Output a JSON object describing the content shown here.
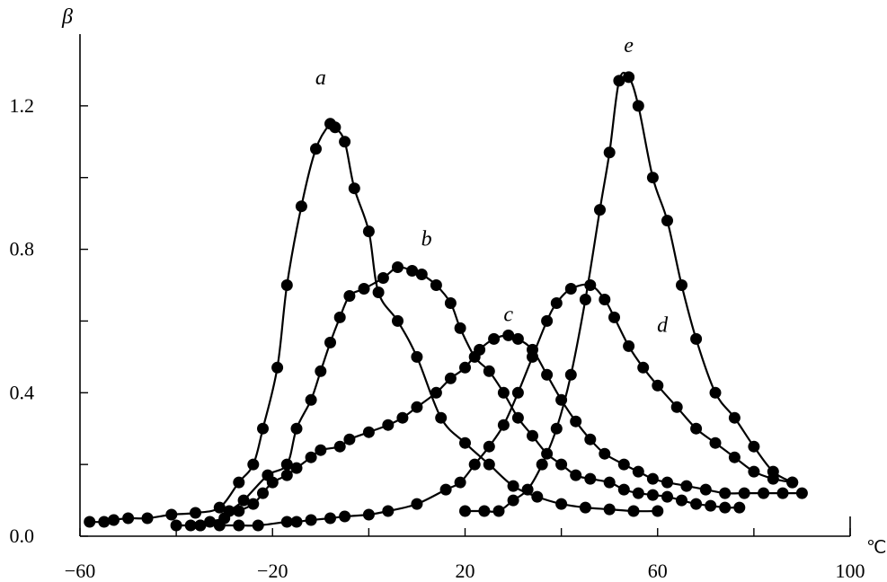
{
  "chart_data": {
    "type": "line",
    "xlabel": "℃",
    "ylabel": "β",
    "xlim": [
      -60,
      100
    ],
    "ylim": [
      0,
      1.4
    ],
    "x_ticks": [
      -60,
      -40,
      -20,
      0,
      20,
      40,
      60,
      80,
      100
    ],
    "x_tick_labels": [
      "−60",
      "−20",
      "20",
      "60",
      "100"
    ],
    "x_tick_label_values": [
      -60,
      -20,
      20,
      60,
      100
    ],
    "y_ticks": [
      0,
      0.2,
      0.4,
      0.6,
      0.8,
      1.0,
      1.2
    ],
    "y_tick_labels": [
      "0.0",
      "0.4",
      "0.8",
      "1.2"
    ],
    "y_tick_label_values": [
      0,
      0.4,
      0.8,
      1.2
    ],
    "series": [
      {
        "name": "a",
        "label_at": [
          -10,
          1.26
        ],
        "x": [
          -58,
          -55,
          -53,
          -50,
          -46,
          -41,
          -36,
          -31,
          -27,
          -24,
          -22,
          -19,
          -17,
          -14,
          -11,
          -8,
          -7,
          -5,
          -3,
          0,
          2,
          6,
          10,
          15,
          20,
          25,
          30,
          35,
          40,
          45,
          50,
          55,
          60
        ],
        "y": [
          0.04,
          0.04,
          0.045,
          0.05,
          0.05,
          0.06,
          0.065,
          0.08,
          0.15,
          0.2,
          0.3,
          0.47,
          0.7,
          0.92,
          1.08,
          1.15,
          1.14,
          1.1,
          0.97,
          0.85,
          0.68,
          0.6,
          0.5,
          0.33,
          0.26,
          0.2,
          0.14,
          0.11,
          0.09,
          0.08,
          0.075,
          0.07,
          0.07
        ]
      },
      {
        "name": "b",
        "label_at": [
          12,
          0.81
        ],
        "x": [
          -29,
          -26,
          -21,
          -17,
          -15,
          -12,
          -10,
          -8,
          -6,
          -4,
          -1,
          3,
          6,
          9,
          11,
          14,
          17,
          19,
          22,
          25,
          28,
          31,
          34,
          37,
          40,
          43,
          46,
          50,
          53,
          56,
          59,
          62,
          65,
          68,
          71,
          74,
          77
        ],
        "y": [
          0.07,
          0.1,
          0.17,
          0.2,
          0.3,
          0.38,
          0.46,
          0.54,
          0.61,
          0.67,
          0.69,
          0.72,
          0.75,
          0.74,
          0.73,
          0.7,
          0.65,
          0.58,
          0.5,
          0.46,
          0.4,
          0.33,
          0.28,
          0.23,
          0.2,
          0.17,
          0.16,
          0.15,
          0.13,
          0.12,
          0.115,
          0.11,
          0.1,
          0.09,
          0.085,
          0.08,
          0.08
        ]
      },
      {
        "name": "c",
        "label_at": [
          29,
          0.6
        ],
        "x": [
          -37,
          -35,
          -33,
          -30,
          -27,
          -24,
          -22,
          -20,
          -17,
          -15,
          -12,
          -10,
          -6,
          -4,
          0,
          4,
          7,
          10,
          14,
          17,
          20,
          23,
          26,
          29,
          31,
          34,
          37,
          40,
          43,
          46,
          49,
          53,
          56,
          59,
          62,
          66,
          70,
          74,
          78,
          82,
          86,
          90
        ],
        "y": [
          0.03,
          0.03,
          0.04,
          0.05,
          0.07,
          0.09,
          0.12,
          0.15,
          0.17,
          0.19,
          0.22,
          0.24,
          0.25,
          0.27,
          0.29,
          0.31,
          0.33,
          0.36,
          0.4,
          0.44,
          0.47,
          0.52,
          0.55,
          0.56,
          0.55,
          0.52,
          0.45,
          0.38,
          0.32,
          0.27,
          0.23,
          0.2,
          0.18,
          0.16,
          0.15,
          0.14,
          0.13,
          0.12,
          0.12,
          0.12,
          0.12,
          0.12
        ]
      },
      {
        "name": "d",
        "label_at": [
          61,
          0.57
        ],
        "x": [
          -40,
          -35,
          -31,
          -27,
          -23,
          -17,
          -15,
          -12,
          -8,
          -5,
          0,
          4,
          10,
          16,
          19,
          22,
          25,
          28,
          31,
          34,
          37,
          39,
          42,
          46,
          49,
          51,
          54,
          57,
          60,
          64,
          68,
          72,
          76,
          80,
          84,
          88
        ],
        "y": [
          0.03,
          0.03,
          0.03,
          0.03,
          0.03,
          0.04,
          0.04,
          0.045,
          0.05,
          0.055,
          0.06,
          0.07,
          0.09,
          0.13,
          0.15,
          0.2,
          0.25,
          0.31,
          0.4,
          0.5,
          0.6,
          0.65,
          0.69,
          0.7,
          0.66,
          0.61,
          0.53,
          0.47,
          0.42,
          0.36,
          0.3,
          0.26,
          0.22,
          0.18,
          0.16,
          0.15
        ]
      },
      {
        "name": "e",
        "label_at": [
          54,
          1.35
        ],
        "x": [
          20,
          24,
          27,
          30,
          33,
          36,
          39,
          42,
          45,
          48,
          50,
          52,
          54,
          56,
          59,
          62,
          65,
          68,
          72,
          76,
          80,
          84,
          88
        ],
        "y": [
          0.07,
          0.07,
          0.07,
          0.1,
          0.13,
          0.2,
          0.3,
          0.45,
          0.66,
          0.91,
          1.07,
          1.27,
          1.28,
          1.2,
          1.0,
          0.88,
          0.7,
          0.55,
          0.4,
          0.33,
          0.25,
          0.18,
          0.15
        ]
      }
    ]
  }
}
